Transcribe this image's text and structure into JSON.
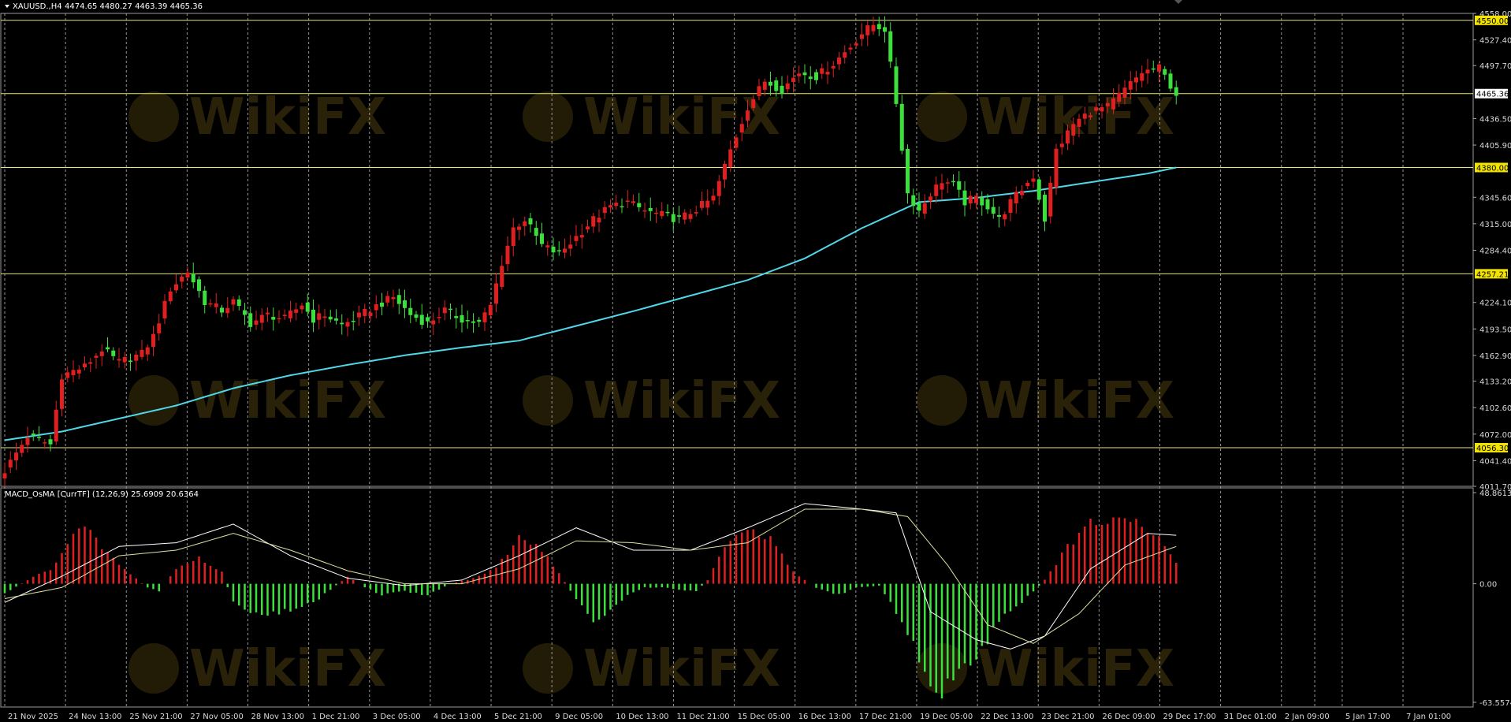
{
  "header": {
    "symbol": "XAUUSD.,H4",
    "ohlc": "4474.65 4480.27 4463.39 4465.36"
  },
  "macd_header": "MACD_OsMA [CurrTF] (12,26,9) 25.6909 20.6364",
  "watermark": "WikiFX",
  "colors": {
    "bull": "#e02020",
    "bear": "#3ce03c",
    "ma": "#4fd8e8",
    "hline": "#e6e680",
    "grid": "#c8c8c8",
    "macd_line": "#ffffff",
    "signal_line": "#e0e0a0"
  },
  "chart_data": [
    {
      "type": "candlestick",
      "price_axis": {
        "ticks": [
          "4558.00",
          "4527.40",
          "4497.70",
          "4436.50",
          "4405.90",
          "4345.60",
          "4315.00",
          "4284.40",
          "4224.10",
          "4193.50",
          "4162.90",
          "4133.20",
          "4102.60",
          "4072.00",
          "4041.40",
          "4011.70"
        ],
        "range": [
          4011.7,
          4558.0
        ]
      },
      "horizontal_levels": [
        "4550.00",
        "4465.36",
        "4380.00",
        "4257.21",
        "4056.30"
      ],
      "time_axis": [
        "21 Nov 2025",
        "24 Nov 13:00",
        "25 Nov 21:00",
        "27 Nov 05:00",
        "28 Nov 13:00",
        "1 Dec 21:00",
        "3 Dec 05:00",
        "4 Dec 13:00",
        "5 Dec 21:00",
        "9 Dec 05:00",
        "10 Dec 13:00",
        "11 Dec 21:00",
        "15 Dec 05:00",
        "16 Dec 13:00",
        "17 Dec 21:00",
        "19 Dec 05:00",
        "22 Dec 13:00",
        "23 Dec 21:00",
        "26 Dec 09:00",
        "29 Dec 17:00",
        "31 Dec 01:00",
        "2 Jan 09:00",
        "5 Jan 17:00",
        "7 Jan 01:00"
      ],
      "close_path": [
        [
          0,
          4030
        ],
        [
          4,
          4070
        ],
        [
          8,
          4060
        ],
        [
          10,
          4140
        ],
        [
          14,
          4150
        ],
        [
          17,
          4170
        ],
        [
          20,
          4155
        ],
        [
          24,
          4165
        ],
        [
          26,
          4185
        ],
        [
          29,
          4240
        ],
        [
          32,
          4260
        ],
        [
          35,
          4225
        ],
        [
          38,
          4215
        ],
        [
          40,
          4225
        ],
        [
          43,
          4200
        ],
        [
          46,
          4210
        ],
        [
          49,
          4205
        ],
        [
          52,
          4222
        ],
        [
          54,
          4205
        ],
        [
          56,
          4210
        ],
        [
          59,
          4198
        ],
        [
          62,
          4208
        ],
        [
          65,
          4220
        ],
        [
          68,
          4230
        ],
        [
          71,
          4210
        ],
        [
          74,
          4200
        ],
        [
          77,
          4215
        ],
        [
          80,
          4205
        ],
        [
          83,
          4200
        ],
        [
          85,
          4220
        ],
        [
          87,
          4270
        ],
        [
          89,
          4310
        ],
        [
          91,
          4320
        ],
        [
          94,
          4290
        ],
        [
          97,
          4280
        ],
        [
          100,
          4300
        ],
        [
          103,
          4320
        ],
        [
          106,
          4335
        ],
        [
          109,
          4340
        ],
        [
          112,
          4330
        ],
        [
          115,
          4325
        ],
        [
          118,
          4320
        ],
        [
          121,
          4332
        ],
        [
          124,
          4345
        ],
        [
          127,
          4400
        ],
        [
          130,
          4450
        ],
        [
          133,
          4480
        ],
        [
          136,
          4470
        ],
        [
          139,
          4490
        ],
        [
          142,
          4485
        ],
        [
          145,
          4500
        ],
        [
          148,
          4520
        ],
        [
          150,
          4535
        ],
        [
          152,
          4545
        ],
        [
          154,
          4540
        ],
        [
          156,
          4455
        ],
        [
          158,
          4350
        ],
        [
          160,
          4330
        ],
        [
          162,
          4350
        ],
        [
          164,
          4365
        ],
        [
          166,
          4360
        ],
        [
          168,
          4340
        ],
        [
          170,
          4345
        ],
        [
          172,
          4335
        ],
        [
          174,
          4320
        ],
        [
          176,
          4340
        ],
        [
          178,
          4355
        ],
        [
          180,
          4370
        ],
        [
          182,
          4320
        ],
        [
          184,
          4400
        ],
        [
          187,
          4430
        ],
        [
          190,
          4445
        ],
        [
          193,
          4450
        ],
        [
          196,
          4470
        ],
        [
          199,
          4490
        ],
        [
          202,
          4495
        ],
        [
          205,
          4465
        ]
      ],
      "ma_path": [
        [
          0,
          4065
        ],
        [
          10,
          4075
        ],
        [
          20,
          4090
        ],
        [
          30,
          4105
        ],
        [
          40,
          4125
        ],
        [
          50,
          4140
        ],
        [
          60,
          4152
        ],
        [
          70,
          4163
        ],
        [
          80,
          4172
        ],
        [
          90,
          4180
        ],
        [
          100,
          4197
        ],
        [
          110,
          4214
        ],
        [
          120,
          4232
        ],
        [
          130,
          4250
        ],
        [
          140,
          4275
        ],
        [
          150,
          4310
        ],
        [
          160,
          4340
        ],
        [
          170,
          4345
        ],
        [
          180,
          4353
        ],
        [
          190,
          4363
        ],
        [
          200,
          4373
        ],
        [
          205,
          4380
        ]
      ]
    },
    {
      "type": "macd",
      "value_axis": {
        "ticks": [
          "48.8613",
          "0.00",
          "-63.5574"
        ],
        "range": [
          -63.5574,
          48.8613
        ]
      },
      "macd": 25.6909,
      "signal": 20.6364,
      "hist_path": [
        [
          0,
          -5
        ],
        [
          4,
          2
        ],
        [
          8,
          8
        ],
        [
          12,
          26
        ],
        [
          14,
          30
        ],
        [
          18,
          16
        ],
        [
          22,
          5
        ],
        [
          25,
          -2
        ],
        [
          27,
          -4
        ],
        [
          30,
          8
        ],
        [
          34,
          14
        ],
        [
          38,
          6
        ],
        [
          40,
          -10
        ],
        [
          45,
          -18
        ],
        [
          50,
          -14
        ],
        [
          55,
          -8
        ],
        [
          60,
          4
        ],
        [
          63,
          -2
        ],
        [
          66,
          -6
        ],
        [
          70,
          -4
        ],
        [
          74,
          -6
        ],
        [
          78,
          0
        ],
        [
          82,
          3
        ],
        [
          86,
          8
        ],
        [
          90,
          25
        ],
        [
          93,
          22
        ],
        [
          96,
          10
        ],
        [
          100,
          -8
        ],
        [
          103,
          -20
        ],
        [
          106,
          -14
        ],
        [
          109,
          -6
        ],
        [
          112,
          -2
        ],
        [
          115,
          -2
        ],
        [
          118,
          -3
        ],
        [
          121,
          -4
        ],
        [
          123,
          2
        ],
        [
          126,
          20
        ],
        [
          130,
          28
        ],
        [
          134,
          24
        ],
        [
          138,
          6
        ],
        [
          142,
          -2
        ],
        [
          146,
          -6
        ],
        [
          149,
          -2
        ],
        [
          153,
          -1
        ],
        [
          156,
          -15
        ],
        [
          160,
          -40
        ],
        [
          163,
          -60
        ],
        [
          166,
          -50
        ],
        [
          170,
          -40
        ],
        [
          174,
          -20
        ],
        [
          178,
          -10
        ],
        [
          182,
          2
        ],
        [
          186,
          20
        ],
        [
          190,
          32
        ],
        [
          194,
          34
        ],
        [
          198,
          32
        ],
        [
          202,
          24
        ],
        [
          205,
          12
        ]
      ],
      "macd_path": [
        [
          0,
          -10
        ],
        [
          10,
          4
        ],
        [
          20,
          20
        ],
        [
          30,
          22
        ],
        [
          40,
          32
        ],
        [
          50,
          15
        ],
        [
          60,
          3
        ],
        [
          70,
          -1
        ],
        [
          80,
          2
        ],
        [
          90,
          15
        ],
        [
          100,
          30
        ],
        [
          110,
          18
        ],
        [
          120,
          18
        ],
        [
          130,
          30
        ],
        [
          140,
          43
        ],
        [
          150,
          40
        ],
        [
          156,
          38
        ],
        [
          162,
          -15
        ],
        [
          170,
          -30
        ],
        [
          176,
          -35
        ],
        [
          182,
          -28
        ],
        [
          190,
          8
        ],
        [
          200,
          27
        ],
        [
          205,
          26
        ]
      ],
      "signal_path": [
        [
          0,
          -8
        ],
        [
          10,
          -2
        ],
        [
          20,
          15
        ],
        [
          30,
          18
        ],
        [
          40,
          27
        ],
        [
          50,
          18
        ],
        [
          60,
          7
        ],
        [
          70,
          0
        ],
        [
          80,
          0
        ],
        [
          90,
          8
        ],
        [
          100,
          23
        ],
        [
          110,
          22
        ],
        [
          120,
          18
        ],
        [
          130,
          22
        ],
        [
          140,
          40
        ],
        [
          150,
          40
        ],
        [
          158,
          36
        ],
        [
          165,
          10
        ],
        [
          172,
          -22
        ],
        [
          180,
          -32
        ],
        [
          188,
          -16
        ],
        [
          196,
          10
        ],
        [
          205,
          20
        ]
      ]
    }
  ]
}
